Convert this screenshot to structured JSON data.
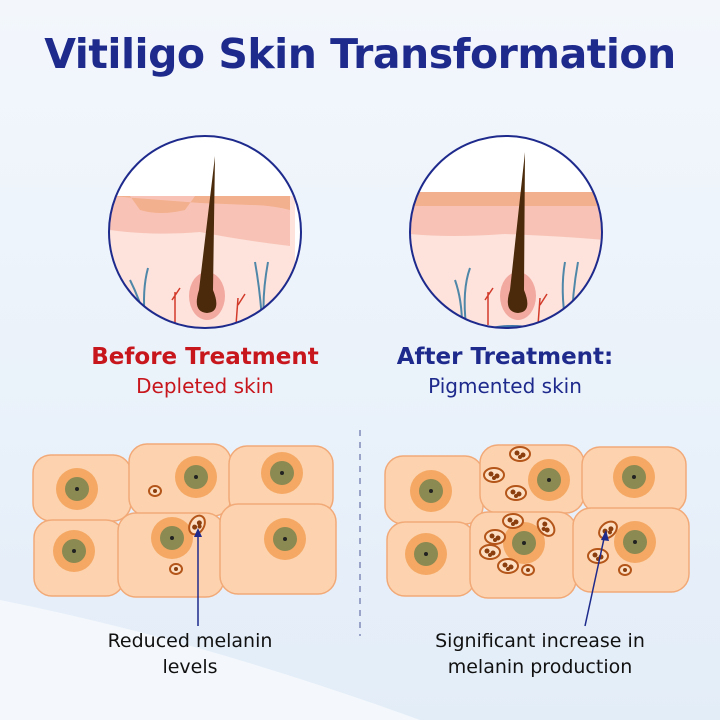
{
  "title": "Vitiligo Skin Transformation",
  "before": {
    "heading": "Before Treatment",
    "subheading": "Depleted skin",
    "caption_line1": "Reduced melanin",
    "caption_line2": "levels"
  },
  "after": {
    "heading": "After Treatment:",
    "subheading": "Pigmented skin",
    "caption_line1": "Significant increase in",
    "caption_line2": "melanin production"
  },
  "colors": {
    "title": "#1e2a8c",
    "before": "#c8161d",
    "after": "#1e2a8c",
    "cell": "#fcd3ae",
    "nucleus": "#8a8a52",
    "melanin": "#8b3e0e"
  }
}
